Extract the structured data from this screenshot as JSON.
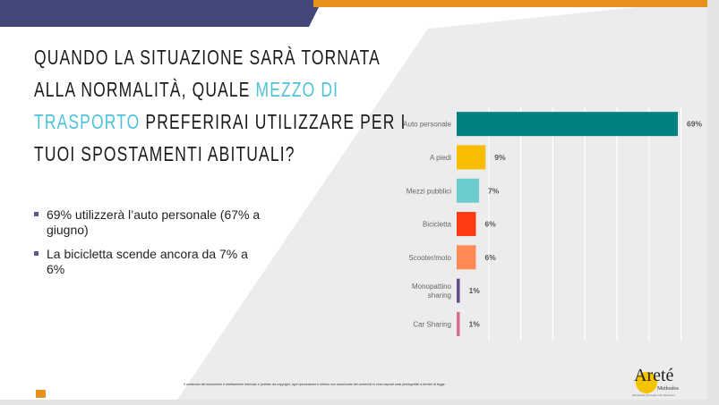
{
  "title": {
    "line1": "QUANDO LA SITUAZIONE SARÀ TORNATA",
    "line2_a": "ALLA NORMALITÀ, QUALE ",
    "line2_accent": "MEZZO DI",
    "line3_accent": "TRASPORTO",
    "line3_b": " PREFERIRAI UTILIZZARE PER I",
    "line4": "TUOI SPOSTAMENTI ABITUALI?"
  },
  "bullets": [
    "69% utilizzerà l’auto personale (67% a giugno)",
    "La bicicletta scende ancora da 7% a 6%"
  ],
  "footer": "Il contenuto del documento è strettamente riservato e protetto da copyright, ogni riproduzione e utilizzo non autorizzato dei contenuti in esso esposti sarà perseguibile a termini di legge.",
  "logo": {
    "name": "Areté",
    "sub": "Methodos",
    "tagline": "Marketing Strategico & Operativo"
  },
  "colors": {
    "navy": "#444878",
    "orange": "#e8901c",
    "accent": "#4fc3d9"
  },
  "chart_data": {
    "type": "bar",
    "orientation": "horizontal",
    "categories": [
      "Auto personale",
      "A piedi",
      "Mezzi pubblici",
      "Bicicletta",
      "Scooter/moto",
      "Monopattino sharing",
      "Car Sharing"
    ],
    "values": [
      69,
      9,
      7,
      6,
      6,
      1,
      1
    ],
    "value_labels": [
      "69%",
      "9%",
      "7%",
      "6%",
      "6%",
      "1%",
      "1%"
    ],
    "colors": [
      "#008080",
      "#f8bc00",
      "#6ccbcc",
      "#ff3c14",
      "#ff8a55",
      "#6a4c8c",
      "#d86a96"
    ],
    "xlim": [
      0,
      70
    ],
    "grid": true,
    "unit": "%"
  }
}
